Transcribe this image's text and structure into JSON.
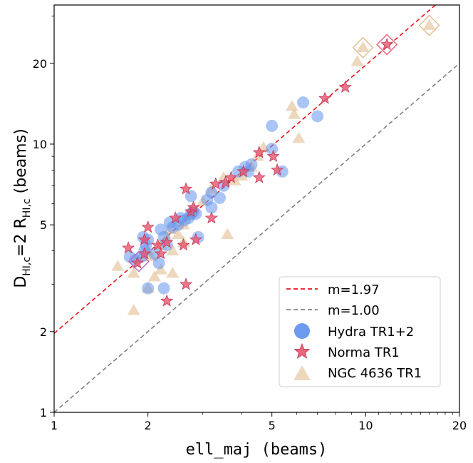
{
  "chart_data": {
    "type": "scatter",
    "x_scale": "log",
    "y_scale": "log",
    "xlabel": "ell_maj (beams)",
    "ylabel_parts": {
      "d": "D",
      "d_sub": "HI,c",
      "mid": "=2 R",
      "r_sub": "HI,c",
      "end": " (beams)"
    },
    "xlim": [
      1,
      20
    ],
    "ylim": [
      1,
      33
    ],
    "x_ticks": [
      1,
      2,
      5,
      10,
      20
    ],
    "x_tick_labels": [
      "1",
      "2",
      "5",
      "10",
      "20"
    ],
    "y_ticks": [
      1,
      2,
      5,
      10,
      20
    ],
    "y_tick_labels": [
      "1",
      "2",
      "5",
      "10",
      "20"
    ],
    "lines": [
      {
        "name": "m=1.97",
        "slope": 1.97,
        "color": "#e8141b",
        "dash": "6,4"
      },
      {
        "name": "m=1.00",
        "slope": 1.0,
        "color": "#808080",
        "dash": "6,4"
      }
    ],
    "series": [
      {
        "name": "Hydra TR1+2",
        "marker": "circle",
        "color": "#6495ed",
        "points": [
          [
            1.75,
            3.8
          ],
          [
            1.82,
            3.7
          ],
          [
            1.9,
            3.8
          ],
          [
            1.95,
            4.0
          ],
          [
            1.93,
            4.5
          ],
          [
            1.97,
            4.2
          ],
          [
            2.0,
            4.4
          ],
          [
            2.1,
            3.9
          ],
          [
            2.17,
            3.6
          ],
          [
            2.2,
            4.8
          ],
          [
            2.25,
            4.5
          ],
          [
            2.3,
            4.2
          ],
          [
            2.35,
            5.1
          ],
          [
            2.4,
            4.9
          ],
          [
            2.5,
            5.0
          ],
          [
            2.55,
            5.3
          ],
          [
            2.62,
            5.2
          ],
          [
            2.7,
            5.3
          ],
          [
            2.75,
            5.5
          ],
          [
            2.8,
            5.6
          ],
          [
            2.85,
            5.5
          ],
          [
            2.75,
            6.4
          ],
          [
            2.9,
            4.5
          ],
          [
            3.1,
            6.2
          ],
          [
            3.2,
            6.6
          ],
          [
            3.2,
            5.8
          ],
          [
            3.4,
            6.3
          ],
          [
            3.5,
            7.0
          ],
          [
            3.9,
            7.9
          ],
          [
            4.1,
            8.2
          ],
          [
            4.2,
            7.9
          ],
          [
            4.3,
            8.4
          ],
          [
            5.0,
            9.6
          ],
          [
            5.4,
            7.9
          ],
          [
            5.0,
            11.7
          ],
          [
            6.3,
            14.3
          ],
          [
            7.0,
            12.7
          ],
          [
            2.0,
            2.9
          ],
          [
            2.25,
            2.9
          ]
        ]
      },
      {
        "name": "Norma TR1",
        "marker": "star",
        "color": "#e8546e",
        "points": [
          [
            1.73,
            4.1
          ],
          [
            1.85,
            3.6
          ],
          [
            1.95,
            3.9
          ],
          [
            2.0,
            4.9
          ],
          [
            2.15,
            4.2
          ],
          [
            2.2,
            3.9
          ],
          [
            2.3,
            4.3
          ],
          [
            2.3,
            2.6
          ],
          [
            2.45,
            5.3
          ],
          [
            2.6,
            4.2
          ],
          [
            2.65,
            6.8
          ],
          [
            2.75,
            5.6
          ],
          [
            2.8,
            5.8
          ],
          [
            2.85,
            4.4
          ],
          [
            3.2,
            5.3
          ],
          [
            3.3,
            7.1
          ],
          [
            3.55,
            7.2
          ],
          [
            3.7,
            7.5
          ],
          [
            4.05,
            7.9
          ],
          [
            4.55,
            7.5
          ],
          [
            4.55,
            9.3
          ],
          [
            5.05,
            9.0
          ],
          [
            5.2,
            8.0
          ],
          [
            7.4,
            14.8
          ],
          [
            8.6,
            16.3
          ],
          [
            11.7,
            23.5
          ],
          [
            2.65,
            3.0
          ],
          [
            1.95,
            4.4
          ]
        ]
      },
      {
        "name": "NGC 4636 TR1",
        "marker": "triangle",
        "color": "#deb887",
        "points": [
          [
            1.6,
            3.5
          ],
          [
            1.8,
            3.3
          ],
          [
            1.8,
            2.4
          ],
          [
            1.9,
            3.8
          ],
          [
            2.0,
            4.0
          ],
          [
            2.0,
            2.9
          ],
          [
            2.1,
            3.2
          ],
          [
            2.2,
            3.4
          ],
          [
            2.3,
            4.5
          ],
          [
            2.4,
            3.3
          ],
          [
            2.4,
            4.0
          ],
          [
            2.5,
            4.6
          ],
          [
            2.6,
            4.3
          ],
          [
            2.6,
            5.0
          ],
          [
            2.7,
            5.4
          ],
          [
            2.8,
            5.8
          ],
          [
            3.0,
            6.1
          ],
          [
            3.2,
            6.8
          ],
          [
            3.5,
            7.5
          ],
          [
            3.6,
            4.6
          ],
          [
            3.8,
            7.3
          ],
          [
            4.0,
            7.6
          ],
          [
            4.3,
            8.2
          ],
          [
            4.5,
            9.0
          ],
          [
            4.7,
            9.7
          ],
          [
            5.8,
            13.8
          ],
          [
            5.9,
            12.9
          ],
          [
            6.1,
            10.5
          ],
          [
            9.4,
            20.3
          ],
          [
            9.8,
            22.9
          ],
          [
            16.0,
            27.7
          ],
          [
            2.2,
            4.2
          ],
          [
            2.35,
            4.8
          ],
          [
            2.05,
            3.8
          ]
        ]
      }
    ],
    "highlights": [
      {
        "x": 1.87,
        "y": 3.65,
        "color": "#c060c0"
      },
      {
        "x": 11.7,
        "y": 23.5,
        "color": "#e8546e"
      },
      {
        "x": 9.8,
        "y": 22.9,
        "color": "#deb887"
      },
      {
        "x": 16.0,
        "y": 27.7,
        "color": "#deb887"
      }
    ],
    "legend": {
      "position": "lower-right",
      "entries": [
        "m=1.97",
        "m=1.00",
        "Hydra TR1+2",
        "Norma TR1",
        "NGC 4636 TR1"
      ]
    }
  }
}
